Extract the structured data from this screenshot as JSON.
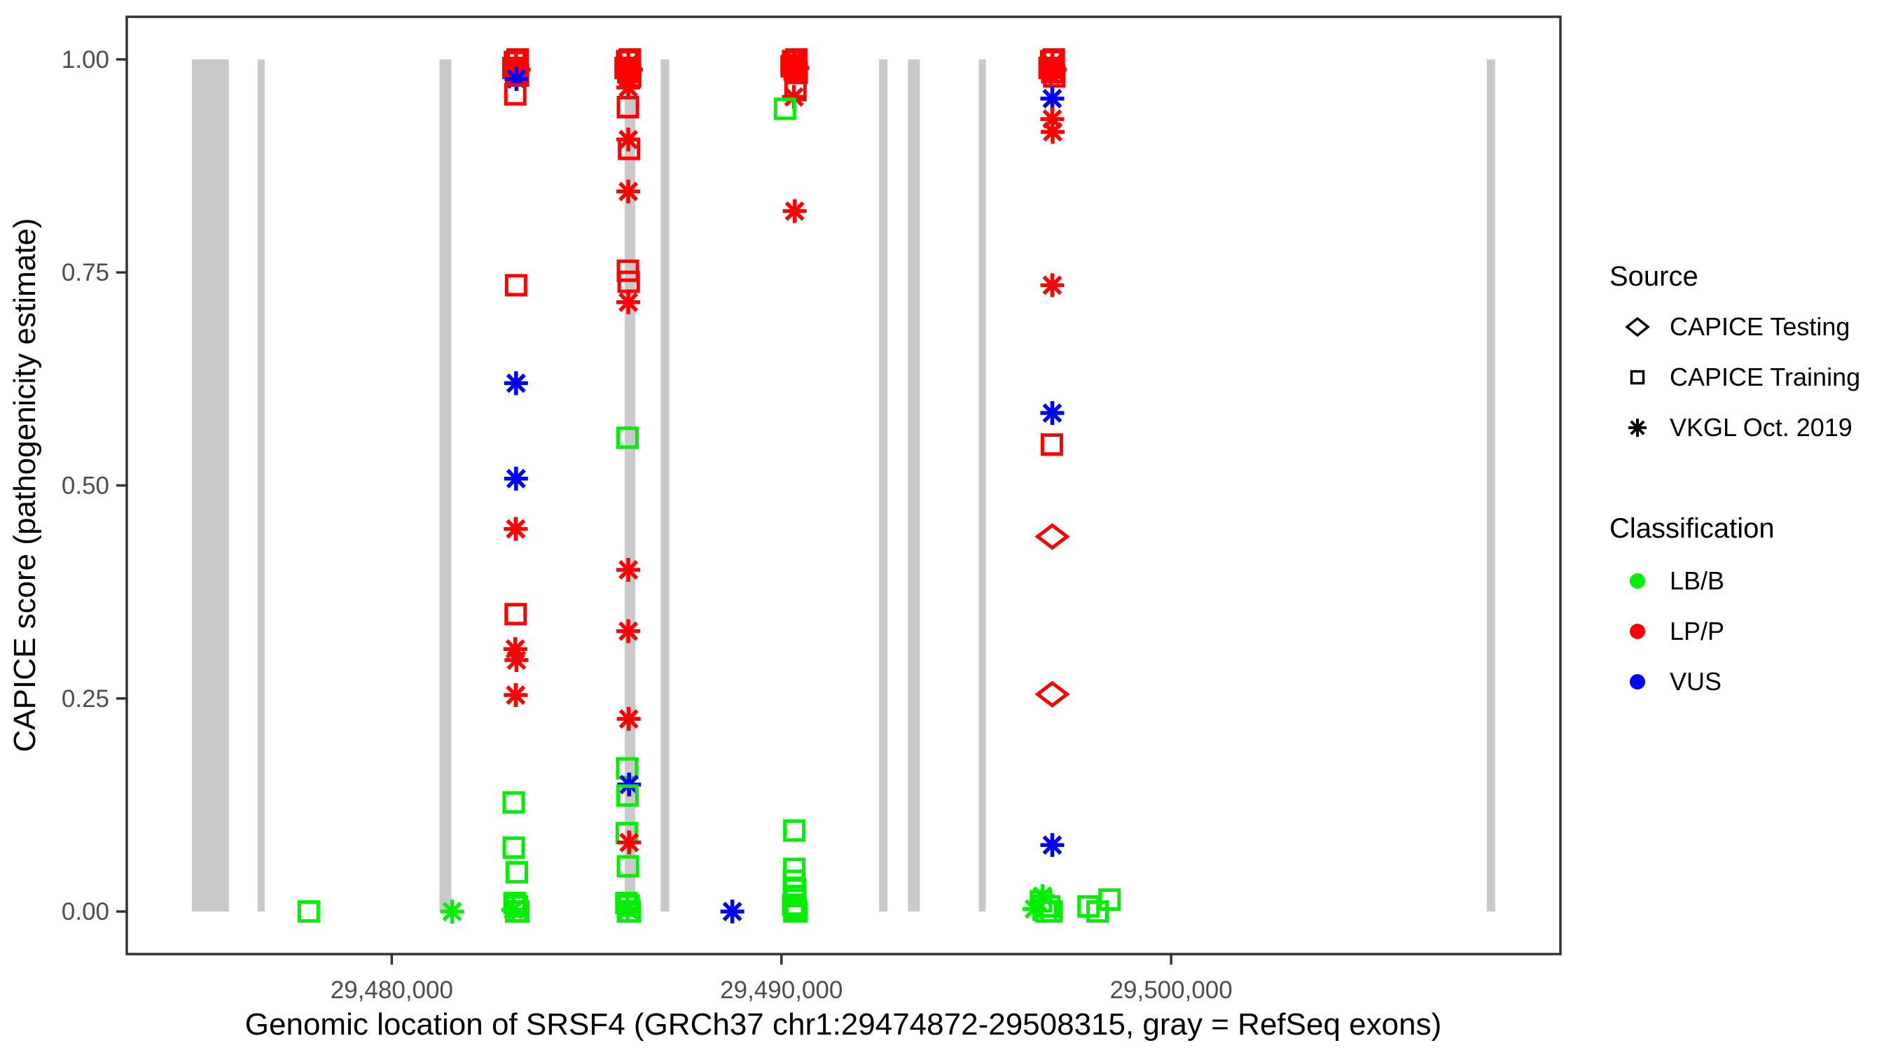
{
  "chart_data": {
    "type": "scatter",
    "title": "",
    "xlabel": "Genomic location of SRSF4 (GRCh37 chr1:29474872-29508315, gray = RefSeq exons)",
    "ylabel": "CAPICE score (pathogenicity estimate)",
    "xlim": [
      29473200,
      29509990
    ],
    "ylim": [
      -0.05,
      1.05
    ],
    "grid": false,
    "x_ticks": [
      {
        "value": 29480000,
        "label": "29,480,000"
      },
      {
        "value": 29490000,
        "label": "29,490,000"
      },
      {
        "value": 29500000,
        "label": "29,500,000"
      }
    ],
    "y_ticks": [
      {
        "value": 0.0,
        "label": "0.00"
      },
      {
        "value": 0.25,
        "label": "0.25"
      },
      {
        "value": 0.5,
        "label": "0.50"
      },
      {
        "value": 0.75,
        "label": "0.75"
      },
      {
        "value": 1.0,
        "label": "1.00"
      }
    ],
    "exons_bp": [
      [
        29474872,
        29475820
      ],
      [
        29476560,
        29476740
      ],
      [
        29481225,
        29481530
      ],
      [
        29485980,
        29486250
      ],
      [
        29486900,
        29487120
      ],
      [
        29492505,
        29492720
      ],
      [
        29493245,
        29493550
      ],
      [
        29495065,
        29495245
      ],
      [
        29508100,
        29508315
      ]
    ],
    "legend": {
      "position": "right",
      "source": {
        "title": "Source",
        "items": [
          {
            "label": "CAPICE Testing",
            "shape": "diamond"
          },
          {
            "label": "CAPICE Training",
            "shape": "square"
          },
          {
            "label": "VKGL Oct. 2019",
            "shape": "asterisk"
          }
        ]
      },
      "classification": {
        "title": "Classification",
        "items": [
          {
            "label": "LB/B",
            "class": "lbb"
          },
          {
            "label": "LP/P",
            "class": "lpp"
          },
          {
            "label": "VUS",
            "class": "vus"
          }
        ]
      }
    },
    "points": [
      [
        29483160,
        0.997,
        "training",
        "lpp"
      ],
      [
        29483230,
        1.0,
        "training",
        "lpp"
      ],
      [
        29483190,
        0.993,
        "vkgl",
        "lpp"
      ],
      [
        29483120,
        0.99,
        "training",
        "lpp"
      ],
      [
        29483260,
        0.988,
        "vkgl",
        "lpp"
      ],
      [
        29483190,
        0.985,
        "training",
        "lpp"
      ],
      [
        29483150,
        0.982,
        "vkgl",
        "lpp"
      ],
      [
        29483240,
        0.981,
        "training",
        "lpp"
      ],
      [
        29483200,
        0.977,
        "vkgl",
        "vus"
      ],
      [
        29483170,
        0.959,
        "training",
        "lpp"
      ],
      [
        29483190,
        0.735,
        "training",
        "lpp"
      ],
      [
        29483190,
        0.62,
        "vkgl",
        "vus"
      ],
      [
        29483190,
        0.508,
        "vkgl",
        "vus"
      ],
      [
        29483180,
        0.449,
        "vkgl",
        "lpp"
      ],
      [
        29483180,
        0.349,
        "training",
        "lpp"
      ],
      [
        29483170,
        0.308,
        "vkgl",
        "lpp"
      ],
      [
        29483200,
        0.295,
        "vkgl",
        "lpp"
      ],
      [
        29483180,
        0.254,
        "vkgl",
        "lpp"
      ],
      [
        29483130,
        0.128,
        "training",
        "lbb"
      ],
      [
        29483130,
        0.075,
        "training",
        "lbb"
      ],
      [
        29483210,
        0.046,
        "training",
        "lbb"
      ],
      [
        29483150,
        0.01,
        "training",
        "lbb"
      ],
      [
        29483210,
        0.006,
        "training",
        "lbb"
      ],
      [
        29483120,
        0.002,
        "vkgl",
        "lbb"
      ],
      [
        29483190,
        0.0,
        "training",
        "lbb"
      ],
      [
        29483250,
        0.0,
        "training",
        "lbb"
      ],
      [
        29486040,
        0.998,
        "training",
        "lpp"
      ],
      [
        29486110,
        1.0,
        "training",
        "lpp"
      ],
      [
        29486070,
        0.994,
        "vkgl",
        "lpp"
      ],
      [
        29486000,
        0.99,
        "training",
        "lpp"
      ],
      [
        29486140,
        0.988,
        "vkgl",
        "lpp"
      ],
      [
        29486070,
        0.985,
        "training",
        "lpp"
      ],
      [
        29486030,
        0.982,
        "vkgl",
        "lpp"
      ],
      [
        29486120,
        0.98,
        "training",
        "lpp"
      ],
      [
        29486070,
        0.967,
        "vkgl",
        "lpp"
      ],
      [
        29486060,
        0.944,
        "training",
        "lpp"
      ],
      [
        29486070,
        0.906,
        "vkgl",
        "lpp"
      ],
      [
        29486090,
        0.895,
        "training",
        "lpp"
      ],
      [
        29486070,
        0.845,
        "vkgl",
        "lpp"
      ],
      [
        29486060,
        0.752,
        "training",
        "lpp"
      ],
      [
        29486080,
        0.739,
        "training",
        "lpp"
      ],
      [
        29486070,
        0.715,
        "vkgl",
        "lpp"
      ],
      [
        29486050,
        0.556,
        "training",
        "lbb"
      ],
      [
        29486070,
        0.401,
        "vkgl",
        "lpp"
      ],
      [
        29486070,
        0.329,
        "vkgl",
        "lpp"
      ],
      [
        29486080,
        0.226,
        "vkgl",
        "lpp"
      ],
      [
        29486040,
        0.168,
        "training",
        "lbb"
      ],
      [
        29486090,
        0.149,
        "vkgl",
        "vus"
      ],
      [
        29486050,
        0.136,
        "training",
        "lbb"
      ],
      [
        29486030,
        0.092,
        "training",
        "lbb"
      ],
      [
        29486090,
        0.081,
        "vkgl",
        "lpp"
      ],
      [
        29486060,
        0.053,
        "training",
        "lbb"
      ],
      [
        29486020,
        0.01,
        "training",
        "lbb"
      ],
      [
        29486080,
        0.007,
        "training",
        "lbb"
      ],
      [
        29486050,
        0.003,
        "vkgl",
        "lbb"
      ],
      [
        29486110,
        0.0,
        "training",
        "lbb"
      ],
      [
        29486060,
        0.0,
        "training",
        "lbb"
      ],
      [
        29490300,
        0.998,
        "training",
        "lpp"
      ],
      [
        29490380,
        1.0,
        "training",
        "lpp"
      ],
      [
        29490340,
        0.995,
        "vkgl",
        "lpp"
      ],
      [
        29490260,
        0.992,
        "training",
        "lpp"
      ],
      [
        29490410,
        0.99,
        "vkgl",
        "lpp"
      ],
      [
        29490340,
        0.988,
        "training",
        "lpp"
      ],
      [
        29490300,
        0.985,
        "vkgl",
        "lpp"
      ],
      [
        29490390,
        0.984,
        "training",
        "lpp"
      ],
      [
        29490350,
        0.993,
        "training",
        "lpp"
      ],
      [
        29490320,
        0.999,
        "vkgl",
        "lpp"
      ],
      [
        29490360,
        0.964,
        "training",
        "lpp"
      ],
      [
        29490320,
        0.956,
        "vkgl",
        "lpp"
      ],
      [
        29490090,
        0.942,
        "training",
        "lbb"
      ],
      [
        29490340,
        0.822,
        "vkgl",
        "lpp"
      ],
      [
        29490330,
        0.095,
        "training",
        "lbb"
      ],
      [
        29490330,
        0.05,
        "training",
        "lbb"
      ],
      [
        29490320,
        0.036,
        "training",
        "lbb"
      ],
      [
        29490350,
        0.026,
        "training",
        "lbb"
      ],
      [
        29490330,
        0.018,
        "training",
        "lbb"
      ],
      [
        29490300,
        0.008,
        "training",
        "lbb"
      ],
      [
        29490360,
        0.004,
        "training",
        "lbb"
      ],
      [
        29490330,
        0.0,
        "training",
        "lbb"
      ],
      [
        29490380,
        0.0,
        "training",
        "lbb"
      ],
      [
        29496920,
        0.998,
        "training",
        "lpp"
      ],
      [
        29496990,
        1.0,
        "training",
        "lpp"
      ],
      [
        29496950,
        0.994,
        "vkgl",
        "lpp"
      ],
      [
        29496880,
        0.99,
        "training",
        "lpp"
      ],
      [
        29497010,
        0.988,
        "vkgl",
        "lpp"
      ],
      [
        29496950,
        0.985,
        "training",
        "lpp"
      ],
      [
        29496910,
        0.982,
        "vkgl",
        "lpp"
      ],
      [
        29497000,
        0.98,
        "training",
        "lpp"
      ],
      [
        29496950,
        0.954,
        "vkgl",
        "vus"
      ],
      [
        29496950,
        0.93,
        "vkgl",
        "lpp"
      ],
      [
        29496960,
        0.915,
        "vkgl",
        "lpp"
      ],
      [
        29496950,
        0.735,
        "vkgl",
        "lpp"
      ],
      [
        29496950,
        0.585,
        "vkgl",
        "vus"
      ],
      [
        29496940,
        0.548,
        "training",
        "lpp"
      ],
      [
        29496950,
        0.44,
        "testing",
        "lpp"
      ],
      [
        29496950,
        0.255,
        "testing",
        "lpp"
      ],
      [
        29496950,
        0.078,
        "vkgl",
        "vus"
      ],
      [
        29496490,
        0.003,
        "vkgl",
        "lbb"
      ],
      [
        29496660,
        0.012,
        "training",
        "lbb"
      ],
      [
        29496700,
        0.018,
        "vkgl",
        "lbb"
      ],
      [
        29496790,
        0.0,
        "training",
        "lbb"
      ],
      [
        29496870,
        0.006,
        "training",
        "lbb"
      ],
      [
        29496930,
        0.0,
        "training",
        "lbb"
      ],
      [
        29497880,
        0.006,
        "training",
        "lbb"
      ],
      [
        29498110,
        0.0,
        "training",
        "lbb"
      ],
      [
        29498420,
        0.014,
        "training",
        "lbb"
      ],
      [
        29477870,
        0.0,
        "training",
        "lbb"
      ],
      [
        29481550,
        0.0,
        "vkgl",
        "lbb"
      ],
      [
        29488740,
        0.0,
        "vkgl",
        "vus"
      ]
    ]
  },
  "colors": {
    "lbb": "#00EE00",
    "lpp": "#FF0000",
    "vus": "#0000FF",
    "exon": "#C9C9C9",
    "axis": "#333333",
    "tick_label": "#4D4D4D",
    "background": "#FFFFFF"
  }
}
